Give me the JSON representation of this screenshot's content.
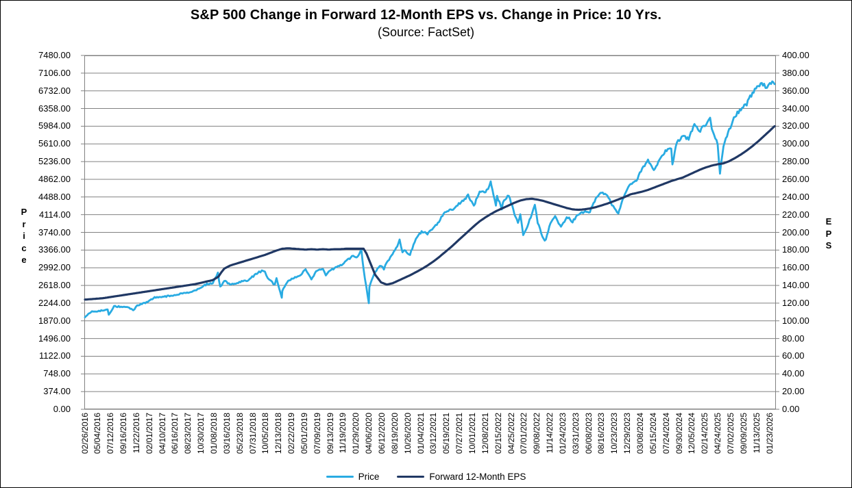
{
  "header": {
    "title": "S&P 500 Change in Forward 12-Month EPS vs. Change in Price: 10 Yrs.",
    "subtitle": "(Source: FactSet)"
  },
  "colors": {
    "price_line": "#29ABE2",
    "eps_line": "#203864",
    "gridline": "#808080",
    "plot_border": "#808080",
    "background": "#FFFFFF",
    "text": "#000000"
  },
  "chart_data": {
    "type": "line",
    "title": "S&P 500 Change in Forward 12-Month EPS vs. Change in Price: 10 Yrs.",
    "subtitle": "(Source: FactSet)",
    "grid": "horizontal-on",
    "legend_position": "bottom-center",
    "legend": [
      "Price",
      "Forward 12-Month EPS"
    ],
    "y_axis_left": {
      "label": "Price",
      "min": 0,
      "max": 7480,
      "step": 374,
      "tick_labels": [
        "7480.00",
        "7106.00",
        "6732.00",
        "6358.00",
        "5984.00",
        "5610.00",
        "5236.00",
        "4862.00",
        "4488.00",
        "4114.00",
        "3740.00",
        "3366.00",
        "2992.00",
        "2618.00",
        "2244.00",
        "1870.00",
        "1496.00",
        "1122.00",
        "748.00",
        "374.00",
        "0.00"
      ]
    },
    "y_axis_right": {
      "label": "EPS",
      "min": 0,
      "max": 400,
      "step": 20,
      "tick_labels": [
        "400.00",
        "380.00",
        "360.00",
        "340.00",
        "320.00",
        "300.00",
        "280.00",
        "260.00",
        "240.00",
        "220.00",
        "200.00",
        "180.00",
        "160.00",
        "140.00",
        "120.00",
        "100.00",
        "80.00",
        "60.00",
        "40.00",
        "20.00",
        "0.00"
      ]
    },
    "x_axis": {
      "tick_labels": [
        "02/26/2016",
        "05/04/2016",
        "07/12/2016",
        "09/16/2016",
        "11/22/2016",
        "02/01/2017",
        "04/10/2017",
        "06/16/2017",
        "08/23/2017",
        "10/30/2017",
        "01/08/2018",
        "03/16/2018",
        "05/23/2018",
        "07/31/2018",
        "10/05/2018",
        "12/13/2018",
        "02/22/2019",
        "05/01/2019",
        "07/09/2019",
        "09/13/2019",
        "11/19/2019",
        "01/29/2020",
        "04/06/2020",
        "06/12/2020",
        "08/19/2020",
        "10/26/2020",
        "01/04/2021",
        "03/12/2021",
        "05/19/2021",
        "07/27/2021",
        "10/01/2021",
        "12/08/2021",
        "02/15/2022",
        "04/25/2022",
        "07/01/2022",
        "09/08/2022",
        "11/14/2022",
        "01/24/2023",
        "03/31/2023",
        "06/08/2023",
        "08/16/2023",
        "10/23/2023",
        "12/29/2023",
        "03/08/2024",
        "05/15/2024",
        "07/24/2024",
        "09/30/2024",
        "12/05/2024",
        "02/14/2025",
        "04/24/2025",
        "07/02/2025",
        "09/09/2025",
        "11/13/2025",
        "01/23/2026"
      ]
    },
    "t_range": [
      0,
      118.8
    ],
    "t_unit": "months since 02/26/2016",
    "series": [
      {
        "name": "Price",
        "axis": "left",
        "color": "#29ABE2",
        "stroke_width": 2.8,
        "jitter": 0.006,
        "points": [
          [
            0,
            1948
          ],
          [
            1,
            2060
          ],
          [
            2,
            2065
          ],
          [
            3,
            2090
          ],
          [
            3.9,
            2113
          ],
          [
            4.1,
            2001
          ],
          [
            5,
            2174
          ],
          [
            6,
            2171
          ],
          [
            7,
            2168
          ],
          [
            8,
            2126
          ],
          [
            8.3,
            2085
          ],
          [
            9,
            2199
          ],
          [
            10,
            2239
          ],
          [
            11,
            2279
          ],
          [
            12,
            2364
          ],
          [
            13,
            2363
          ],
          [
            14,
            2384
          ],
          [
            15,
            2412
          ],
          [
            16,
            2423
          ],
          [
            17,
            2470
          ],
          [
            18,
            2472
          ],
          [
            19,
            2519
          ],
          [
            20,
            2575
          ],
          [
            21,
            2648
          ],
          [
            22,
            2674
          ],
          [
            22.9,
            2873
          ],
          [
            23.3,
            2581
          ],
          [
            24,
            2714
          ],
          [
            25,
            2641
          ],
          [
            26,
            2648
          ],
          [
            27,
            2705
          ],
          [
            28,
            2718
          ],
          [
            29,
            2816
          ],
          [
            30,
            2902
          ],
          [
            30.7,
            2931
          ],
          [
            31,
            2914
          ],
          [
            31.5,
            2768
          ],
          [
            32,
            2712
          ],
          [
            32.7,
            2633
          ],
          [
            33,
            2760
          ],
          [
            33.9,
            2351
          ],
          [
            34,
            2507
          ],
          [
            35,
            2704
          ],
          [
            36,
            2784
          ],
          [
            37,
            2834
          ],
          [
            38,
            2946
          ],
          [
            39,
            2752
          ],
          [
            40,
            2942
          ],
          [
            41,
            2980
          ],
          [
            41.5,
            2847
          ],
          [
            42,
            2926
          ],
          [
            43,
            2977
          ],
          [
            44,
            3038
          ],
          [
            45,
            3141
          ],
          [
            46,
            3231
          ],
          [
            47,
            3226
          ],
          [
            47.6,
            3386
          ],
          [
            48,
            2954
          ],
          [
            48.9,
            2237
          ],
          [
            49,
            2585
          ],
          [
            50,
            2912
          ],
          [
            51,
            3044
          ],
          [
            51.5,
            2965
          ],
          [
            52,
            3100
          ],
          [
            53,
            3271
          ],
          [
            54,
            3500
          ],
          [
            54.2,
            3580
          ],
          [
            54.7,
            3310
          ],
          [
            55,
            3363
          ],
          [
            56,
            3270
          ],
          [
            57,
            3622
          ],
          [
            58,
            3756
          ],
          [
            59,
            3714
          ],
          [
            60,
            3811
          ],
          [
            61,
            3973
          ],
          [
            62,
            4181
          ],
          [
            63,
            4204
          ],
          [
            64,
            4298
          ],
          [
            65,
            4395
          ],
          [
            66,
            4523
          ],
          [
            67,
            4308
          ],
          [
            68,
            4605
          ],
          [
            69,
            4567
          ],
          [
            69.9,
            4793
          ],
          [
            70,
            4766
          ],
          [
            70.8,
            4326
          ],
          [
            71,
            4516
          ],
          [
            71.8,
            4226
          ],
          [
            72,
            4374
          ],
          [
            73,
            4530
          ],
          [
            74,
            4132
          ],
          [
            74.6,
            3930
          ],
          [
            75,
            4132
          ],
          [
            75.5,
            3667
          ],
          [
            76,
            3785
          ],
          [
            77,
            4130
          ],
          [
            77.5,
            4305
          ],
          [
            78,
            3955
          ],
          [
            79,
            3586
          ],
          [
            79.4,
            3577
          ],
          [
            80,
            3872
          ],
          [
            81,
            4080
          ],
          [
            82,
            3840
          ],
          [
            83,
            4077
          ],
          [
            84,
            3970
          ],
          [
            85,
            4109
          ],
          [
            86,
            4169
          ],
          [
            87,
            4180
          ],
          [
            88,
            4450
          ],
          [
            89,
            4589
          ],
          [
            90,
            4508
          ],
          [
            91,
            4288
          ],
          [
            91.9,
            4117
          ],
          [
            92,
            4194
          ],
          [
            93,
            4568
          ],
          [
            94,
            4770
          ],
          [
            95,
            4846
          ],
          [
            96,
            5096
          ],
          [
            97,
            5254
          ],
          [
            98,
            5036
          ],
          [
            99,
            5277
          ],
          [
            100,
            5460
          ],
          [
            101,
            5522
          ],
          [
            101.2,
            5186
          ],
          [
            102,
            5648
          ],
          [
            103,
            5762
          ],
          [
            104,
            5705
          ],
          [
            105,
            6032
          ],
          [
            106,
            5882
          ],
          [
            107,
            6041
          ],
          [
            107.7,
            6144
          ],
          [
            108,
            5955
          ],
          [
            109,
            5612
          ],
          [
            109.4,
            4983
          ],
          [
            110,
            5569
          ],
          [
            111,
            5912
          ],
          [
            112,
            6205
          ],
          [
            113,
            6339
          ],
          [
            114,
            6460
          ],
          [
            115,
            6688
          ],
          [
            116,
            6840
          ],
          [
            116.6,
            6900
          ],
          [
            117,
            6849
          ],
          [
            117.5,
            6767
          ],
          [
            118,
            6881
          ],
          [
            118.4,
            6932
          ],
          [
            118.8,
            6874
          ]
        ]
      },
      {
        "name": "Forward 12-Month EPS",
        "axis": "right",
        "color": "#203864",
        "stroke_width": 3.2,
        "jitter": 0,
        "points": [
          [
            0,
            124
          ],
          [
            1,
            124.5
          ],
          [
            2,
            125
          ],
          [
            3,
            125.5
          ],
          [
            4,
            126.5
          ],
          [
            5,
            127.5
          ],
          [
            6,
            128.5
          ],
          [
            7,
            129.5
          ],
          [
            8,
            130.5
          ],
          [
            9,
            131.5
          ],
          [
            10,
            132.5
          ],
          [
            11,
            133.5
          ],
          [
            12,
            134.5
          ],
          [
            13,
            135.5
          ],
          [
            14,
            136.5
          ],
          [
            15,
            137.5
          ],
          [
            16,
            138.5
          ],
          [
            17,
            139.5
          ],
          [
            18,
            140.5
          ],
          [
            19,
            141.5
          ],
          [
            20,
            143
          ],
          [
            21,
            144.5
          ],
          [
            22,
            146
          ],
          [
            23,
            150
          ],
          [
            23.5,
            155
          ],
          [
            24,
            159
          ],
          [
            25,
            162.5
          ],
          [
            26,
            164.5
          ],
          [
            27,
            166.5
          ],
          [
            28,
            168.5
          ],
          [
            29,
            170.5
          ],
          [
            30,
            172.5
          ],
          [
            31,
            174.5
          ],
          [
            32,
            177
          ],
          [
            33,
            179.5
          ],
          [
            34,
            181.5
          ],
          [
            35,
            182
          ],
          [
            36,
            181.5
          ],
          [
            37,
            181
          ],
          [
            38,
            180.5
          ],
          [
            39,
            181
          ],
          [
            40,
            180.5
          ],
          [
            41,
            181
          ],
          [
            42,
            180.5
          ],
          [
            43,
            181
          ],
          [
            44,
            181
          ],
          [
            45,
            181.5
          ],
          [
            46,
            181.5
          ],
          [
            47,
            181.5
          ],
          [
            48,
            181.5
          ],
          [
            48.5,
            176
          ],
          [
            49,
            168
          ],
          [
            50,
            152
          ],
          [
            51,
            143.5
          ],
          [
            52,
            141
          ],
          [
            53,
            142.5
          ],
          [
            54,
            145.5
          ],
          [
            55,
            148.5
          ],
          [
            56,
            151.5
          ],
          [
            57,
            155
          ],
          [
            58,
            158.5
          ],
          [
            59,
            162.5
          ],
          [
            60,
            167
          ],
          [
            61,
            172
          ],
          [
            62,
            177.5
          ],
          [
            63,
            183
          ],
          [
            64,
            189
          ],
          [
            65,
            195
          ],
          [
            66,
            201
          ],
          [
            67,
            207
          ],
          [
            68,
            212.5
          ],
          [
            69,
            217
          ],
          [
            70,
            221
          ],
          [
            71,
            224.5
          ],
          [
            72,
            227.5
          ],
          [
            73,
            230.5
          ],
          [
            74,
            233.5
          ],
          [
            75,
            236
          ],
          [
            76,
            237.5
          ],
          [
            77,
            238
          ],
          [
            78,
            237
          ],
          [
            79,
            235.5
          ],
          [
            80,
            233.5
          ],
          [
            81,
            231.5
          ],
          [
            82,
            229.5
          ],
          [
            83,
            227.5
          ],
          [
            84,
            226
          ],
          [
            85,
            225.5
          ],
          [
            86,
            226
          ],
          [
            87,
            227
          ],
          [
            88,
            228.5
          ],
          [
            89,
            230.5
          ],
          [
            90,
            232.5
          ],
          [
            91,
            235
          ],
          [
            92,
            237.5
          ],
          [
            93,
            240
          ],
          [
            94,
            243
          ],
          [
            95,
            244.5
          ],
          [
            96,
            246
          ],
          [
            97,
            248
          ],
          [
            98,
            250.5
          ],
          [
            99,
            253
          ],
          [
            100,
            255.5
          ],
          [
            101,
            258
          ],
          [
            102,
            260
          ],
          [
            103,
            262
          ],
          [
            104,
            265
          ],
          [
            105,
            268
          ],
          [
            106,
            271
          ],
          [
            107,
            273.5
          ],
          [
            108,
            275.5
          ],
          [
            109,
            277
          ],
          [
            110,
            278
          ],
          [
            111,
            280.5
          ],
          [
            112,
            284
          ],
          [
            113,
            288
          ],
          [
            114,
            292.5
          ],
          [
            115,
            297.5
          ],
          [
            116,
            303
          ],
          [
            117,
            309
          ],
          [
            118,
            315
          ],
          [
            118.8,
            320
          ]
        ]
      }
    ]
  }
}
